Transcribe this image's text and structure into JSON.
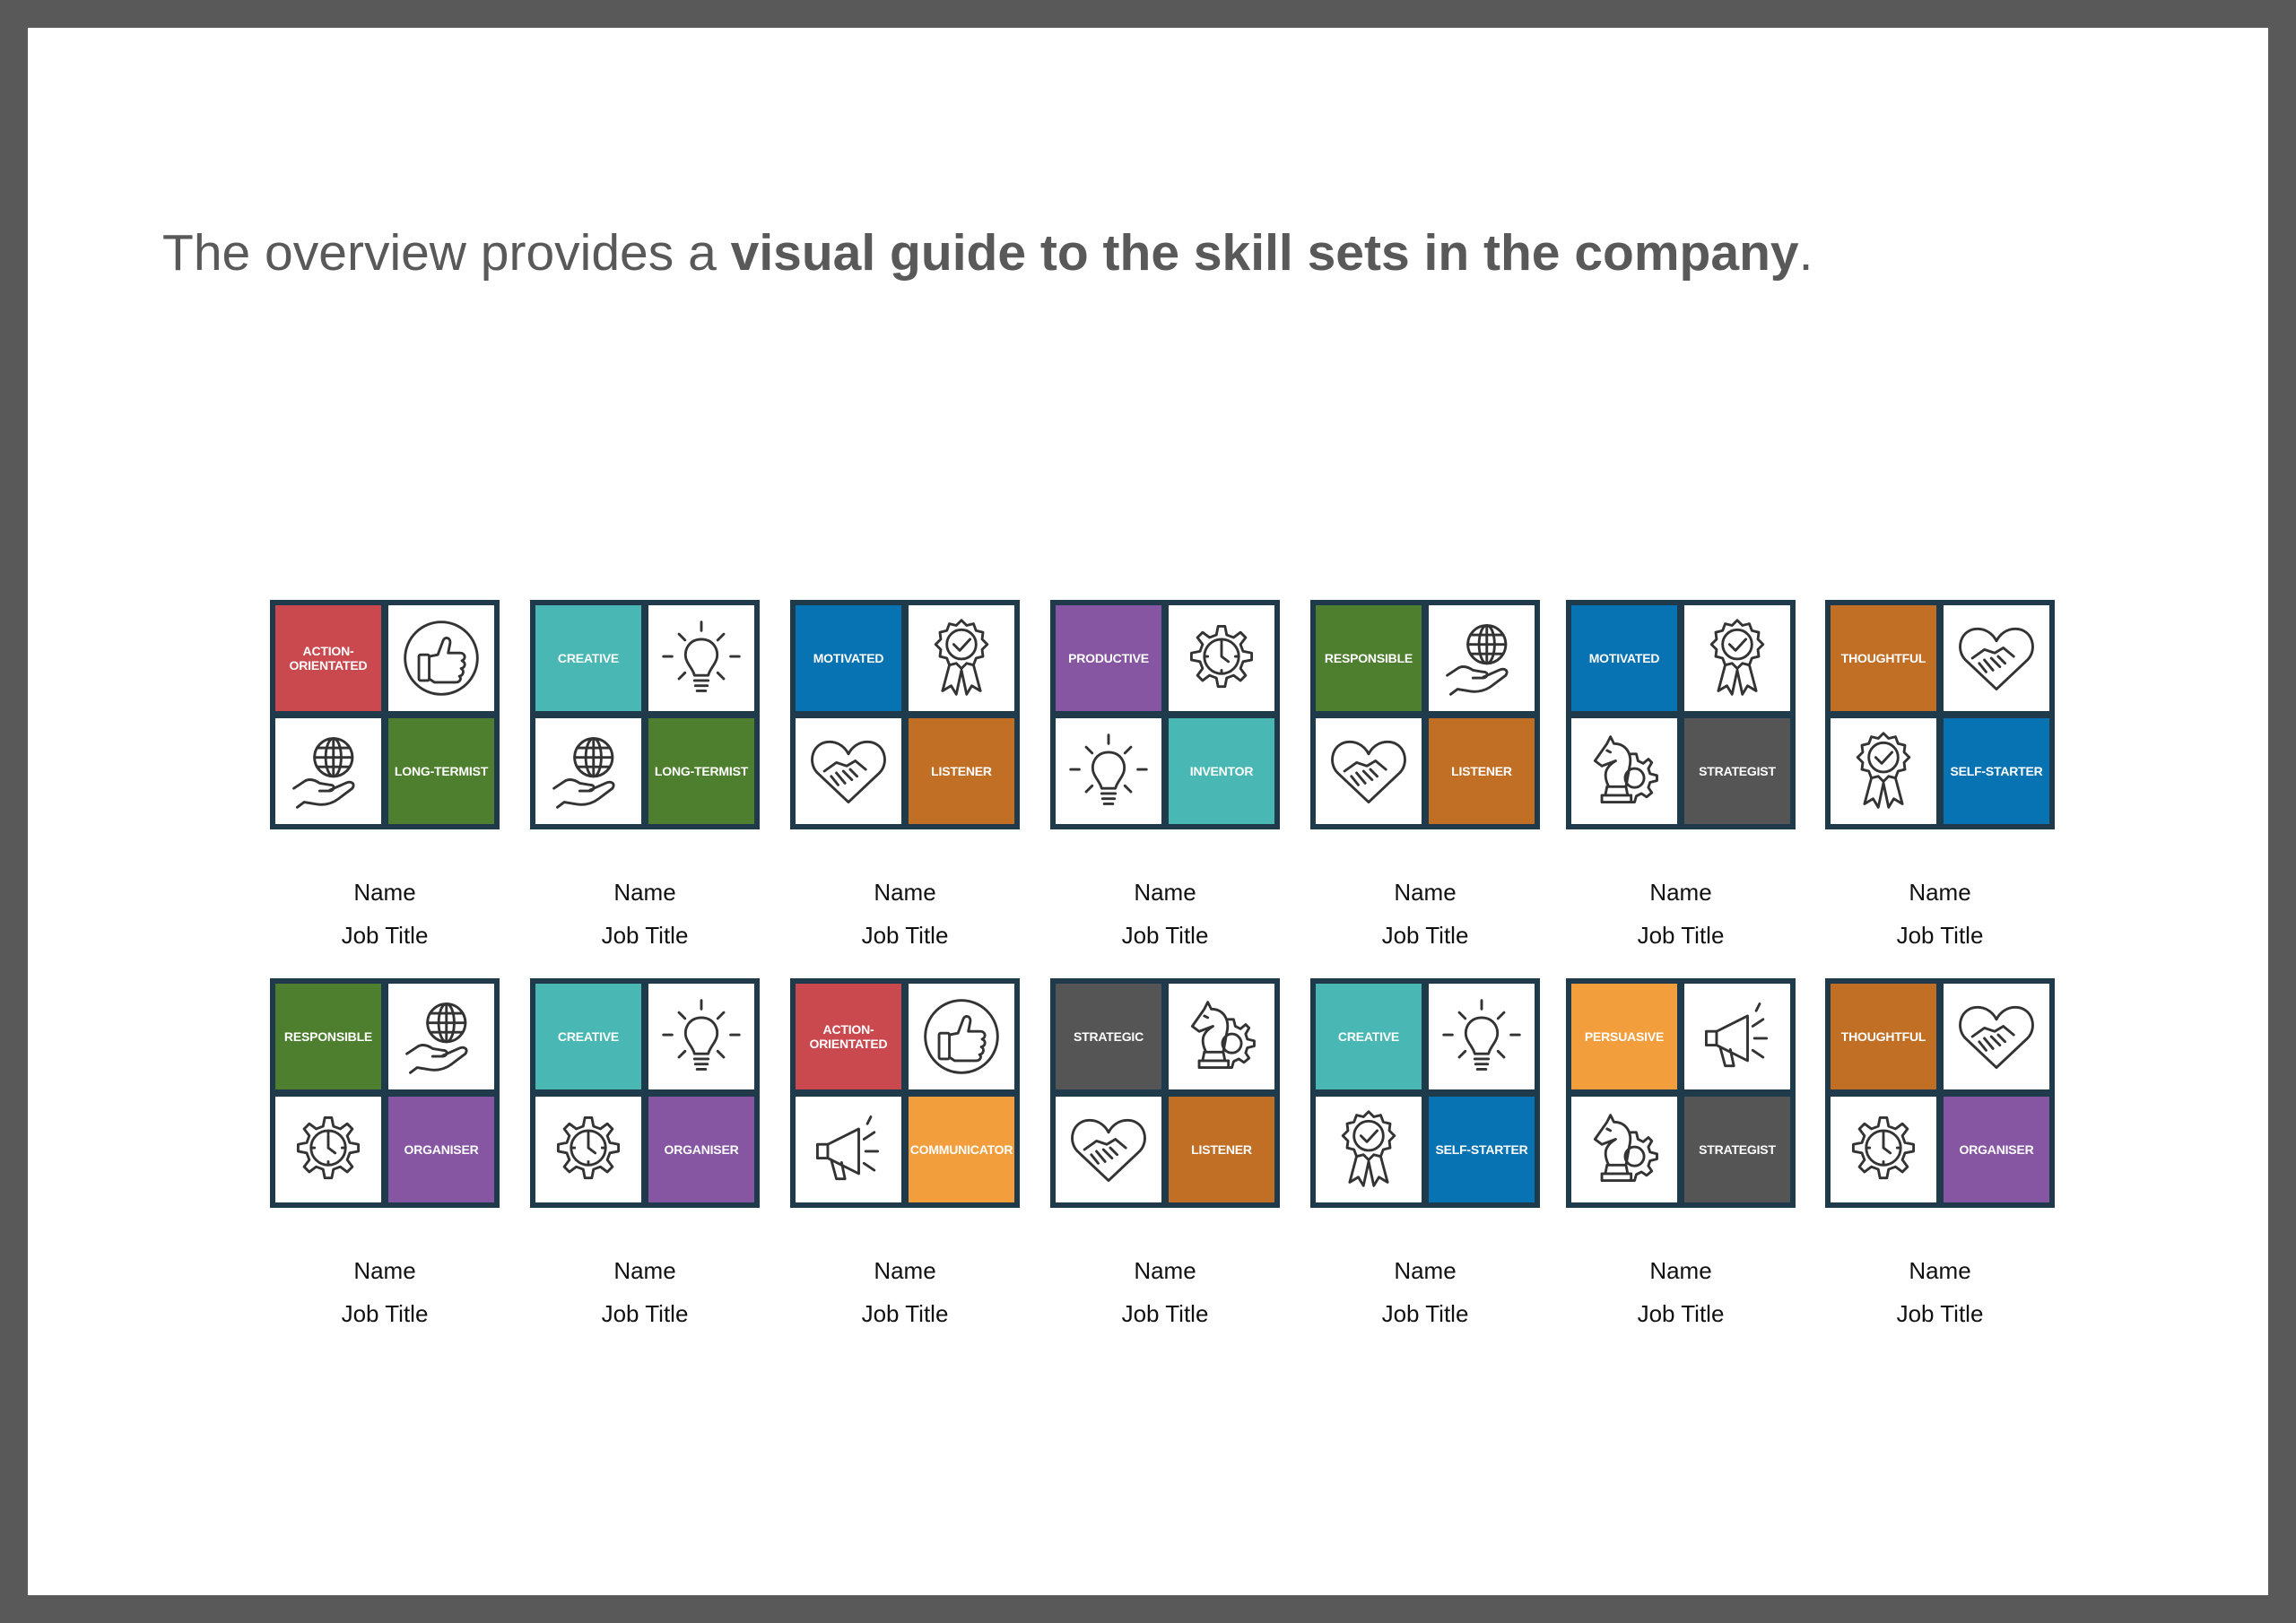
{
  "heading": {
    "lead": "The overview provides a ",
    "bold": "visual guide to the skill sets in the company",
    "tail": "."
  },
  "colors": {
    "ACTION-ORIENTATED": "#c9494f",
    "LONG-TERMIST": "#4e7f2e",
    "CREATIVE": "#49b8b4",
    "MOTIVATED": "#0873b3",
    "LISTENER": "#c26f26",
    "PRODUCTIVE": "#8656a3",
    "INVENTOR": "#49b8b4",
    "RESPONSIBLE": "#4e7f2e",
    "STRATEGIST": "#555555",
    "THOUGHTFUL": "#c26f26",
    "SELF-STARTER": "#0873b3",
    "ORGANISER": "#8656a3",
    "COMMUNICATOR": "#f29e3d",
    "STRATEGIC": "#555555",
    "PERSUASIVE": "#f29e3d"
  },
  "cards": [
    {
      "cells": [
        {
          "label": "ACTION-ORIENTATED"
        },
        {
          "icon": "thumbs-up-icon"
        },
        {
          "icon": "globe-hand-icon"
        },
        {
          "label": "LONG-TERMIST"
        }
      ],
      "name": "Name",
      "job_title": "Job Title"
    },
    {
      "cells": [
        {
          "label": "CREATIVE"
        },
        {
          "icon": "lightbulb-icon"
        },
        {
          "icon": "globe-hand-icon"
        },
        {
          "label": "LONG-TERMIST"
        }
      ],
      "name": "Name",
      "job_title": "Job Title"
    },
    {
      "cells": [
        {
          "label": "MOTIVATED"
        },
        {
          "icon": "award-ribbon-icon"
        },
        {
          "icon": "heart-handshake-icon"
        },
        {
          "label": "LISTENER"
        }
      ],
      "name": "Name",
      "job_title": "Job Title"
    },
    {
      "cells": [
        {
          "label": "PRODUCTIVE"
        },
        {
          "icon": "gear-clock-icon"
        },
        {
          "icon": "lightbulb-icon"
        },
        {
          "label": "INVENTOR"
        }
      ],
      "name": "Name",
      "job_title": "Job Title"
    },
    {
      "cells": [
        {
          "label": "RESPONSIBLE"
        },
        {
          "icon": "globe-hand-icon"
        },
        {
          "icon": "heart-handshake-icon"
        },
        {
          "label": "LISTENER"
        }
      ],
      "name": "Name",
      "job_title": "Job Title"
    },
    {
      "cells": [
        {
          "label": "MOTIVATED"
        },
        {
          "icon": "award-ribbon-icon"
        },
        {
          "icon": "chess-knight-gear-icon"
        },
        {
          "label": "STRATEGIST"
        }
      ],
      "name": "Name",
      "job_title": "Job Title"
    },
    {
      "cells": [
        {
          "label": "THOUGHTFUL"
        },
        {
          "icon": "heart-handshake-icon"
        },
        {
          "icon": "award-ribbon-icon"
        },
        {
          "label": "SELF-STARTER"
        }
      ],
      "name": "Name",
      "job_title": "Job Title"
    },
    {
      "cells": [
        {
          "label": "RESPONSIBLE"
        },
        {
          "icon": "globe-hand-icon"
        },
        {
          "icon": "gear-clock-icon"
        },
        {
          "label": "ORGANISER"
        }
      ],
      "name": "Name",
      "job_title": "Job Title"
    },
    {
      "cells": [
        {
          "label": "CREATIVE"
        },
        {
          "icon": "lightbulb-icon"
        },
        {
          "icon": "gear-clock-icon"
        },
        {
          "label": "ORGANISER"
        }
      ],
      "name": "Name",
      "job_title": "Job Title"
    },
    {
      "cells": [
        {
          "label": "ACTION-ORIENTATED"
        },
        {
          "icon": "thumbs-up-icon"
        },
        {
          "icon": "megaphone-icon"
        },
        {
          "label": "COMMUNICATOR"
        }
      ],
      "name": "Name",
      "job_title": "Job Title"
    },
    {
      "cells": [
        {
          "label": "STRATEGIC"
        },
        {
          "icon": "chess-knight-gear-icon"
        },
        {
          "icon": "heart-handshake-icon"
        },
        {
          "label": "LISTENER"
        }
      ],
      "name": "Name",
      "job_title": "Job Title"
    },
    {
      "cells": [
        {
          "label": "CREATIVE"
        },
        {
          "icon": "lightbulb-icon"
        },
        {
          "icon": "award-ribbon-icon"
        },
        {
          "label": "SELF-STARTER"
        }
      ],
      "name": "Name",
      "job_title": "Job Title"
    },
    {
      "cells": [
        {
          "label": "PERSUASIVE"
        },
        {
          "icon": "megaphone-icon"
        },
        {
          "icon": "chess-knight-gear-icon"
        },
        {
          "label": "STRATEGIST"
        }
      ],
      "name": "Name",
      "job_title": "Job Title"
    },
    {
      "cells": [
        {
          "label": "THOUGHTFUL"
        },
        {
          "icon": "heart-handshake-icon"
        },
        {
          "icon": "gear-clock-icon"
        },
        {
          "label": "ORGANISER"
        }
      ],
      "name": "Name",
      "job_title": "Job Title"
    }
  ]
}
